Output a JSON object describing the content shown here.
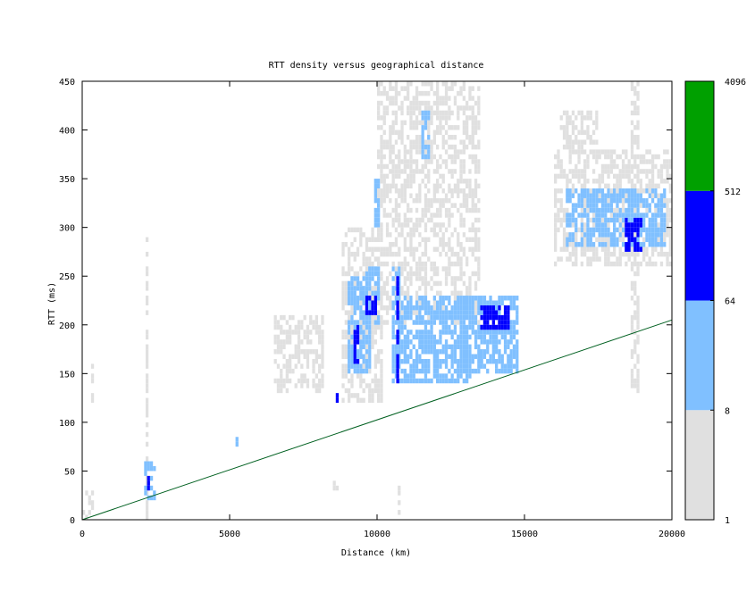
{
  "chart_data": {
    "type": "heatmap",
    "title": "RTT density versus geographical distance",
    "xlabel": "Distance (km)",
    "ylabel": "RTT (ms)",
    "xlim": [
      0,
      20000
    ],
    "ylim": [
      0,
      450
    ],
    "x_ticks": [
      "0",
      "5000",
      "10000",
      "15000",
      "20000"
    ],
    "y_ticks": [
      "0",
      "50",
      "100",
      "150",
      "200",
      "250",
      "300",
      "350",
      "400",
      "450"
    ],
    "grid": false,
    "legend_placement": "right",
    "colorbar": {
      "scale": "log",
      "ticks": [
        "1",
        "8",
        "64",
        "512",
        "4096"
      ],
      "bands": [
        {
          "from": 1,
          "to": 8,
          "color": "#e0e0e0"
        },
        {
          "from": 8,
          "to": 64,
          "color": "#80c0ff"
        },
        {
          "from": 64,
          "to": 512,
          "color": "#0000ff"
        },
        {
          "from": 512,
          "to": 4096,
          "color": "#00a000"
        }
      ]
    },
    "reference_line": {
      "color": "#006020",
      "points": [
        [
          0,
          0
        ],
        [
          20000,
          205
        ]
      ]
    },
    "cell_size": {
      "x_km": 100,
      "y_ms": 5
    },
    "density_regions": [
      {
        "x": [
          0,
          400
        ],
        "y": [
          0,
          30
        ],
        "level": 1
      },
      {
        "x": [
          300,
          400
        ],
        "y": [
          120,
          160
        ],
        "level": 1
      },
      {
        "x": [
          2150,
          2250
        ],
        "y": [
          0,
          290
        ],
        "level": 1
      },
      {
        "x": [
          2100,
          2500
        ],
        "y": [
          20,
          60
        ],
        "level": 2
      },
      {
        "x": [
          2200,
          2250
        ],
        "y": [
          30,
          45
        ],
        "level": 3
      },
      {
        "x": [
          5200,
          5250
        ],
        "y": [
          75,
          85
        ],
        "level": 2
      },
      {
        "x": [
          6500,
          8200
        ],
        "y": [
          130,
          210
        ],
        "level": 1
      },
      {
        "x": [
          8500,
          8650
        ],
        "y": [
          120,
          130
        ],
        "level": 3
      },
      {
        "x": [
          8800,
          10200
        ],
        "y": [
          120,
          300
        ],
        "level": 1
      },
      {
        "x": [
          9000,
          9800
        ],
        "y": [
          150,
          250
        ],
        "level": 2
      },
      {
        "x": [
          9200,
          9400
        ],
        "y": [
          160,
          200
        ],
        "level": 3
      },
      {
        "x": [
          9500,
          10100
        ],
        "y": [
          200,
          260
        ],
        "level": 2
      },
      {
        "x": [
          9600,
          10000
        ],
        "y": [
          210,
          230
        ],
        "level": 3
      },
      {
        "x": [
          9900,
          10100
        ],
        "y": [
          300,
          350
        ],
        "level": 2
      },
      {
        "x": [
          10000,
          13500
        ],
        "y": [
          200,
          450
        ],
        "level": 1
      },
      {
        "x": [
          10500,
          10800
        ],
        "y": [
          140,
          260
        ],
        "level": 2
      },
      {
        "x": [
          10650,
          10750
        ],
        "y": [
          140,
          255
        ],
        "level": 3
      },
      {
        "x": [
          10800,
          13200
        ],
        "y": [
          140,
          230
        ],
        "level": 2
      },
      {
        "x": [
          11500,
          11800
        ],
        "y": [
          370,
          420
        ],
        "level": 2
      },
      {
        "x": [
          12800,
          14800
        ],
        "y": [
          150,
          230
        ],
        "level": 2
      },
      {
        "x": [
          13500,
          14500
        ],
        "y": [
          195,
          220
        ],
        "level": 3
      },
      {
        "x": [
          16000,
          20000
        ],
        "y": [
          260,
          380
        ],
        "level": 1
      },
      {
        "x": [
          16400,
          19800
        ],
        "y": [
          280,
          340
        ],
        "level": 2
      },
      {
        "x": [
          18400,
          18950
        ],
        "y": [
          275,
          310
        ],
        "level": 3
      },
      {
        "x": [
          16200,
          17500
        ],
        "y": [
          380,
          420
        ],
        "level": 1
      },
      {
        "x": [
          18600,
          18900
        ],
        "y": [
          130,
          450
        ],
        "level": 1
      },
      {
        "x": [
          8400,
          8700
        ],
        "y": [
          30,
          40
        ],
        "level": 1
      },
      {
        "x": [
          10700,
          10800
        ],
        "y": [
          5,
          40
        ],
        "level": 1
      }
    ]
  }
}
